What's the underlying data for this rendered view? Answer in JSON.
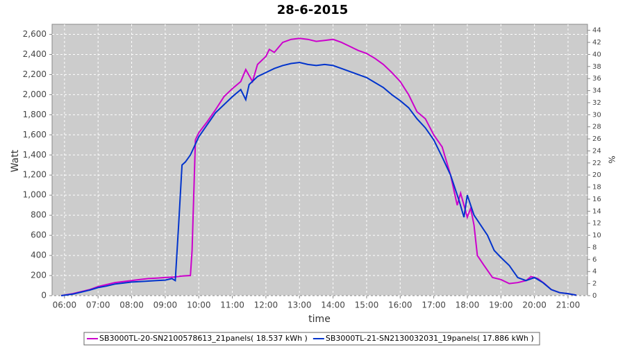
{
  "chart_data": {
    "type": "line",
    "title": "28-6-2015",
    "xlabel": "time",
    "ylabel": "Watt",
    "y2label": "%",
    "xlim": [
      5.63,
      21.58
    ],
    "xticks": [
      {
        "value": 6,
        "label": "06:00"
      },
      {
        "value": 7,
        "label": "07:00"
      },
      {
        "value": 8,
        "label": "08:00"
      },
      {
        "value": 9,
        "label": "09:00"
      },
      {
        "value": 10,
        "label": "10:00"
      },
      {
        "value": 11,
        "label": "11:00"
      },
      {
        "value": 12,
        "label": "12:00"
      },
      {
        "value": 13,
        "label": "13:00"
      },
      {
        "value": 14,
        "label": "14:00"
      },
      {
        "value": 15,
        "label": "15:00"
      },
      {
        "value": 16,
        "label": "16:00"
      },
      {
        "value": 17,
        "label": "17:00"
      },
      {
        "value": 18,
        "label": "18:00"
      },
      {
        "value": 19,
        "label": "19:00"
      },
      {
        "value": 20,
        "label": "20:00"
      },
      {
        "value": 21,
        "label": "21:00"
      }
    ],
    "ylim": [
      0,
      2700
    ],
    "yticks": [
      0,
      200,
      400,
      600,
      800,
      {
        "value": 1000,
        "label": "1,000"
      },
      {
        "value": 1200,
        "label": "1,200"
      },
      {
        "value": 1400,
        "label": "1,400"
      },
      {
        "value": 1600,
        "label": "1,600"
      },
      {
        "value": 1800,
        "label": "1,800"
      },
      {
        "value": 2000,
        "label": "2,000"
      },
      {
        "value": 2200,
        "label": "2,200"
      },
      {
        "value": 2400,
        "label": "2,400"
      },
      {
        "value": 2600,
        "label": "2,600"
      }
    ],
    "y2lim": [
      0,
      45
    ],
    "y2ticks": [
      0,
      2,
      4,
      6,
      8,
      10,
      12,
      14,
      16,
      18,
      20,
      22,
      24,
      26,
      28,
      30,
      32,
      34,
      36,
      38,
      40,
      42,
      44
    ],
    "grid": true,
    "series": [
      {
        "name": "SB3000TL-20-SN2100578613_21panels( 18.537 kWh )",
        "color": "#cc00cc",
        "x": [
          5.9,
          6.25,
          6.5,
          6.75,
          7,
          7.25,
          7.5,
          7.75,
          8,
          8.25,
          8.5,
          8.75,
          9,
          9.25,
          9.5,
          9.75,
          9.8,
          9.9,
          10,
          10.25,
          10.5,
          10.75,
          11,
          11.25,
          11.4,
          11.6,
          11.75,
          12,
          12.1,
          12.25,
          12.5,
          12.75,
          13,
          13.25,
          13.5,
          13.75,
          14,
          14.25,
          14.5,
          14.75,
          15,
          15.25,
          15.5,
          15.75,
          16,
          16.25,
          16.5,
          16.75,
          17,
          17.25,
          17.5,
          17.7,
          17.8,
          17.9,
          18,
          18.1,
          18.2,
          18.3,
          18.5,
          18.75,
          19,
          19.25,
          19.5,
          19.75,
          19.9,
          20.1,
          20.3,
          20.5,
          20.75,
          21,
          21.25
        ],
        "values": [
          0,
          20,
          40,
          60,
          90,
          110,
          130,
          140,
          150,
          160,
          170,
          175,
          180,
          185,
          195,
          200,
          450,
          1550,
          1620,
          1730,
          1850,
          1980,
          2060,
          2130,
          2250,
          2130,
          2300,
          2380,
          2450,
          2420,
          2520,
          2550,
          2560,
          2550,
          2530,
          2540,
          2550,
          2520,
          2480,
          2440,
          2410,
          2360,
          2300,
          2220,
          2130,
          2000,
          1830,
          1760,
          1600,
          1480,
          1200,
          900,
          1020,
          900,
          780,
          870,
          700,
          400,
          300,
          180,
          160,
          120,
          130,
          150,
          190,
          170,
          120,
          60,
          30,
          20,
          5
        ]
      },
      {
        "name": "SB3000TL-21-SN2130032031_19panels( 17.886 kWh )",
        "color": "#0033cc",
        "x": [
          5.9,
          6.25,
          6.5,
          6.75,
          7,
          7.25,
          7.5,
          7.75,
          8,
          8.25,
          8.5,
          8.75,
          9,
          9.2,
          9.3,
          9.4,
          9.5,
          9.6,
          9.75,
          10,
          10.25,
          10.5,
          10.75,
          11,
          11.25,
          11.4,
          11.5,
          11.75,
          12,
          12.25,
          12.5,
          12.75,
          13,
          13.25,
          13.5,
          13.75,
          14,
          14.25,
          14.5,
          14.75,
          15,
          15.25,
          15.5,
          15.75,
          16,
          16.25,
          16.5,
          16.75,
          17,
          17.25,
          17.5,
          17.75,
          17.9,
          18,
          18.2,
          18.4,
          18.6,
          18.8,
          19,
          19.25,
          19.5,
          19.75,
          20,
          20.25,
          20.5,
          20.75,
          21,
          21.25
        ],
        "values": [
          0,
          15,
          35,
          55,
          80,
          95,
          115,
          125,
          135,
          140,
          145,
          150,
          155,
          170,
          150,
          700,
          1300,
          1330,
          1400,
          1580,
          1700,
          1820,
          1900,
          1980,
          2050,
          1950,
          2100,
          2180,
          2220,
          2260,
          2290,
          2310,
          2320,
          2300,
          2290,
          2300,
          2290,
          2260,
          2230,
          2200,
          2170,
          2120,
          2070,
          2000,
          1940,
          1870,
          1760,
          1670,
          1550,
          1380,
          1200,
          950,
          780,
          1000,
          800,
          700,
          600,
          450,
          380,
          300,
          180,
          150,
          180,
          130,
          60,
          30,
          20,
          5
        ]
      }
    ]
  }
}
